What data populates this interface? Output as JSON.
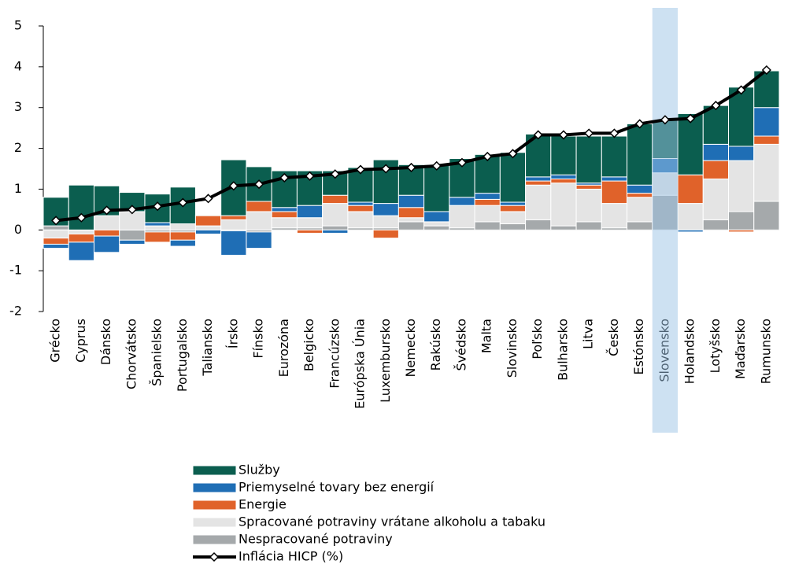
{
  "chart_data": {
    "type": "bar",
    "stacked": true,
    "categories": [
      "Grécko",
      "Cyprus",
      "Dánsko",
      "Chorvátsko",
      "Španielsko",
      "Portugalsko",
      "Taliansko",
      "Írsko",
      "Fínsko",
      "Eurozóna",
      "Belgicko",
      "Francúzsko",
      "Európska Únia",
      "Luxembursko",
      "Nemecko",
      "Rakúsko",
      "Švédsko",
      "Malta",
      "Slovinsko",
      "Poľsko",
      "Bulharsko",
      "Litva",
      "Česko",
      "Estónsko",
      "Slovensko",
      "Holandsko",
      "Lotyšsko",
      "Maďarsko",
      "Rumunsko"
    ],
    "series": [
      {
        "name": "Nespracované potraviny",
        "color": "#a5a9ab",
        "values": [
          0.1,
          0,
          0,
          -0.25,
          -0.05,
          -0.05,
          0,
          -0.02,
          -0.05,
          0.05,
          0.05,
          0.1,
          0.05,
          0.05,
          0.2,
          0.1,
          0.05,
          0.2,
          0.15,
          0.25,
          0.1,
          0.2,
          0.05,
          0.2,
          0.85,
          0,
          0.25,
          0.45,
          0.7
        ]
      },
      {
        "name": "Spracované potraviny vrátane alkoholu a tabaku",
        "color": "#e4e4e4",
        "values": [
          -0.2,
          -0.1,
          0.35,
          0.45,
          0.1,
          0.15,
          0.1,
          0.25,
          0.45,
          0.25,
          0.25,
          0.55,
          0.4,
          0.3,
          0.1,
          0.1,
          0.55,
          0.4,
          0.3,
          0.85,
          1.05,
          0.8,
          0.6,
          0.6,
          0.55,
          0.65,
          1.0,
          1.25,
          1.4
        ]
      },
      {
        "name": "Energie",
        "color": "#e0622a",
        "values": [
          -0.15,
          -0.2,
          -0.15,
          0,
          -0.25,
          -0.2,
          0.25,
          0.1,
          0.25,
          0.15,
          -0.08,
          0.2,
          0.15,
          -0.2,
          0.25,
          0,
          0,
          0.15,
          0.15,
          0.1,
          0.1,
          0.1,
          0.55,
          0.1,
          0,
          0.7,
          0.45,
          -0.05,
          0.2
        ]
      },
      {
        "name": "Priemyselné tovary bez energií",
        "color": "#1f6eb5",
        "values": [
          -0.1,
          -0.45,
          -0.4,
          -0.1,
          0.08,
          -0.15,
          -0.1,
          -0.6,
          -0.4,
          0.1,
          0.3,
          -0.08,
          0.08,
          0.3,
          0.3,
          0.25,
          0.2,
          0.15,
          0.08,
          0.1,
          0.1,
          0.05,
          0.1,
          0.2,
          0.35,
          -0.05,
          0.4,
          0.35,
          0.7
        ]
      },
      {
        "name": "Služby",
        "color": "#0b5e4f",
        "values": [
          0.7,
          1.1,
          0.73,
          0.47,
          0.7,
          0.9,
          0.02,
          1.37,
          0.85,
          0.9,
          0.85,
          0.6,
          0.85,
          1.07,
          0.75,
          1.15,
          0.95,
          0.95,
          1.22,
          1.05,
          0.95,
          1.15,
          1.0,
          1.5,
          0.95,
          1.5,
          0.95,
          1.45,
          0.9
        ]
      },
      {
        "name": "Inflácia HICP (%)",
        "type": "line",
        "color": "#000000",
        "values": [
          0.23,
          0.3,
          0.48,
          0.5,
          0.58,
          0.67,
          0.77,
          1.08,
          1.12,
          1.28,
          1.32,
          1.37,
          1.48,
          1.5,
          1.53,
          1.57,
          1.65,
          1.8,
          1.87,
          2.33,
          2.33,
          2.37,
          2.37,
          2.6,
          2.7,
          2.73,
          3.05,
          3.43,
          3.92
        ]
      }
    ],
    "highlight": 24,
    "ylim": [
      -2,
      5
    ],
    "yticks": [
      -2,
      -1,
      0,
      1,
      2,
      3,
      4,
      5
    ]
  }
}
